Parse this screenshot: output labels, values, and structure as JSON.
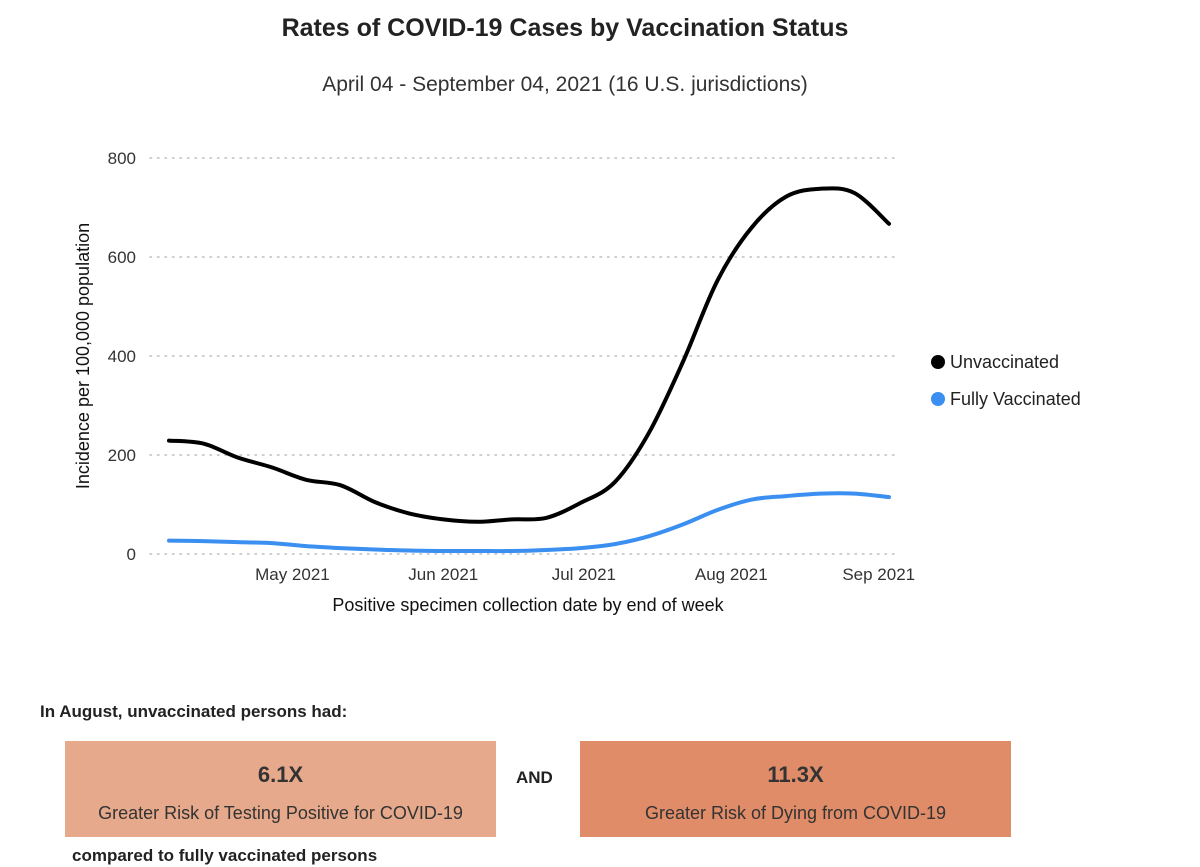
{
  "chart_data": {
    "type": "line",
    "title": "Rates of COVID-19 Cases by Vaccination Status",
    "subtitle": "April 04 - September 04, 2021 (16 U.S. jurisdictions)",
    "xlabel": "Positive specimen collection date by end of week",
    "ylabel": "Incidence per 100,000 population",
    "ylim": [
      0,
      800
    ],
    "yticks": [
      0,
      200,
      400,
      600,
      800
    ],
    "grid": true,
    "legend_position": "right",
    "x_tick_labels": [
      "May 2021",
      "Jun 2021",
      "Jul 2021",
      "Aug 2021",
      "Sep 2021"
    ],
    "x_tick_week_index": [
      3.6,
      8,
      12.1,
      16.4,
      20.7
    ],
    "x": [
      "Apr 10",
      "Apr 17",
      "Apr 24",
      "May 01",
      "May 08",
      "May 15",
      "May 22",
      "May 29",
      "Jun 05",
      "Jun 12",
      "Jun 19",
      "Jun 26",
      "Jul 03",
      "Jul 10",
      "Jul 17",
      "Jul 24",
      "Jul 31",
      "Aug 07",
      "Aug 14",
      "Aug 21",
      "Aug 28",
      "Sep 04"
    ],
    "series": [
      {
        "name": "Unvaccinated",
        "color": "#000000",
        "values": [
          229,
          223,
          195,
          175,
          150,
          139,
          105,
          82,
          70,
          65,
          70,
          73,
          103,
          145,
          245,
          390,
          553,
          660,
          722,
          738,
          729,
          667
        ]
      },
      {
        "name": "Fully Vaccinated",
        "color": "#3b8ff0",
        "values": [
          27,
          26,
          24,
          22,
          16,
          12,
          9,
          7,
          6,
          6,
          6,
          8,
          12,
          20,
          36,
          60,
          89,
          110,
          117,
          122,
          122,
          115
        ]
      }
    ]
  },
  "stats": {
    "intro": "In August, unvaccinated persons had:",
    "box1": {
      "value": "6.1X",
      "label": "Greater Risk of Testing Positive for COVID-19",
      "color": "#e6a98b"
    },
    "connector": "AND",
    "box2": {
      "value": "11.3X",
      "label": "Greater Risk of Dying from COVID-19",
      "color": "#e08c68"
    },
    "outro": "compared to fully vaccinated persons"
  }
}
